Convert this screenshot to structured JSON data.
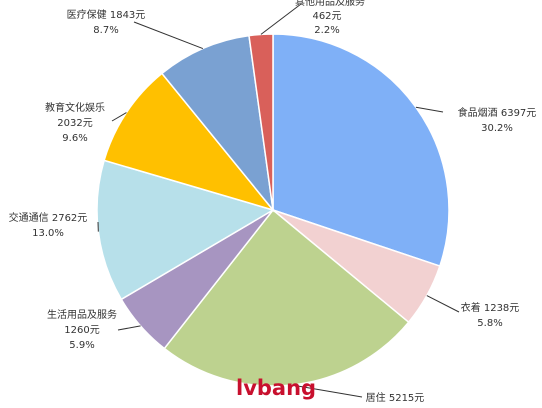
{
  "chart_data": {
    "type": "pie",
    "title": "",
    "unit": "元",
    "slices": [
      {
        "name": "食品烟酒",
        "value": 6397,
        "percent": "30.2%",
        "color": "#7fb0f7",
        "line1": "食品烟酒 6397元",
        "line2": "30.2%"
      },
      {
        "name": "衣着",
        "value": 1238,
        "percent": "5.8%",
        "color": "#f2d1d1",
        "line1": "衣着 1238元",
        "line2": "5.8%"
      },
      {
        "name": "居住",
        "value": 5215,
        "percent": "24.6%",
        "color": "#bdd28f",
        "line1": "居住 5215元",
        "line2": ""
      },
      {
        "name": "生活用品及服务",
        "value": 1260,
        "percent": "5.9%",
        "color": "#a795c1",
        "line1": "生活用品及服务",
        "line2": "1260元",
        "line3": "5.9%"
      },
      {
        "name": "交通通信",
        "value": 2762,
        "percent": "13.0%",
        "color": "#b7e0ea",
        "line1": "交通通信 2762元",
        "line2": "13.0%"
      },
      {
        "name": "教育文化娱乐",
        "value": 2032,
        "percent": "9.6%",
        "color": "#ffc000",
        "line1": "教育文化娱乐",
        "line2": "2032元",
        "line3": "9.6%"
      },
      {
        "name": "医疗保健",
        "value": 1843,
        "percent": "8.7%",
        "color": "#7aa1d2",
        "line1": "医疗保健 1843元",
        "line2": "8.7%"
      },
      {
        "name": "其他用品及服务",
        "value": 462,
        "percent": "2.2%",
        "color": "#d9605a",
        "line1": "其他用品及服务",
        "line2": "462元",
        "line3": "2.2%"
      }
    ]
  },
  "watermark": {
    "text": "lvbang",
    "color": "#c8102e"
  }
}
